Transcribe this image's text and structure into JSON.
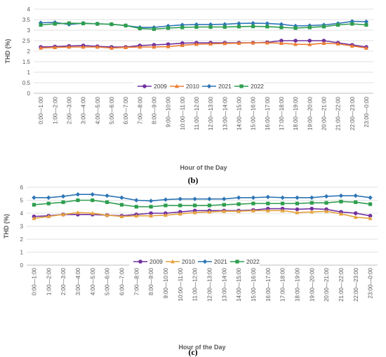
{
  "chart_data": [
    {
      "id": "b",
      "caption": "(b)",
      "type": "line",
      "xlabel": "Hour of the Day",
      "ylabel": "THD (%)",
      "ylim": [
        0,
        4
      ],
      "yticks": [
        0,
        0.5,
        1,
        1.5,
        2,
        2.5,
        3,
        3.5,
        4
      ],
      "ytick_labels": [
        "0",
        "0.5",
        "1",
        "1.5",
        "2",
        "2.5",
        "3",
        "3.5",
        "4"
      ],
      "grid": true,
      "legend_position": "center",
      "categories": [
        "0:00—1:00",
        "1:00—2:00",
        "2:00—3:00",
        "3:00—4:00",
        "4:00—5:00",
        "5:00—6:00",
        "6:00—7:00",
        "7:00—8:00",
        "8:00—9:00",
        "9:00—10:00",
        "10:00—11:00",
        "11:00—12:00",
        "12:00—13:00",
        "13:00—14:00",
        "14:00—15:00",
        "15:00—16:00",
        "16:00—17:00",
        "17:00—18:00",
        "18:00—19:00",
        "19:00—20:00",
        "20:00—21:00",
        "21:00—22:00",
        "22:00—23:00",
        "23:00—0:00"
      ],
      "series": [
        {
          "name": "2009",
          "color": "#7030a0",
          "marker": "circle",
          "values": [
            2.2,
            2.22,
            2.25,
            2.27,
            2.23,
            2.2,
            2.2,
            2.27,
            2.3,
            2.33,
            2.38,
            2.4,
            2.4,
            2.4,
            2.4,
            2.4,
            2.42,
            2.5,
            2.5,
            2.5,
            2.5,
            2.4,
            2.3,
            2.2
          ]
        },
        {
          "name": "2010",
          "color": "#ed7d31",
          "marker": "triangle",
          "values": [
            2.15,
            2.18,
            2.2,
            2.2,
            2.2,
            2.15,
            2.18,
            2.2,
            2.2,
            2.22,
            2.28,
            2.33,
            2.35,
            2.37,
            2.38,
            2.4,
            2.4,
            2.38,
            2.33,
            2.32,
            2.38,
            2.35,
            2.25,
            2.15
          ]
        },
        {
          "name": "2021",
          "color": "#2e75b6",
          "marker": "diamond",
          "values": [
            3.35,
            3.37,
            3.27,
            3.33,
            3.3,
            3.28,
            3.22,
            3.13,
            3.13,
            3.2,
            3.25,
            3.27,
            3.27,
            3.28,
            3.32,
            3.33,
            3.32,
            3.28,
            3.2,
            3.22,
            3.25,
            3.32,
            3.42,
            3.4
          ]
        },
        {
          "name": "2022",
          "color": "#2e9e4f",
          "marker": "square",
          "values": [
            3.25,
            3.3,
            3.33,
            3.32,
            3.3,
            3.28,
            3.22,
            3.08,
            3.05,
            3.1,
            3.13,
            3.15,
            3.15,
            3.15,
            3.17,
            3.18,
            3.17,
            3.13,
            3.1,
            3.13,
            3.17,
            3.25,
            3.3,
            3.25
          ]
        }
      ]
    },
    {
      "id": "c",
      "caption": "(c)",
      "type": "line",
      "xlabel": "Hour of the Day",
      "ylabel": "THD (%)",
      "ylim": [
        0,
        6
      ],
      "yticks": [
        0,
        1,
        2,
        3,
        4,
        5,
        6
      ],
      "ytick_labels": [
        "0",
        "1",
        "2",
        "3",
        "4",
        "5",
        "6"
      ],
      "grid": true,
      "legend_position": "center",
      "categories": [
        "0:00—1:00",
        "1:00—2:00",
        "2:00—3:00",
        "3:00—4:00",
        "4:00—5:00",
        "5:00—6:00",
        "6:00—7:00",
        "7:00—8:00",
        "8:00—9:00",
        "9:00—10:00",
        "10:00—11:00",
        "11:00—12:00",
        "12:00—13:00",
        "13:00—14:00",
        "14:00—15:00",
        "15:00—16:00",
        "16:00—17:00",
        "17:00—18:00",
        "18:00—19:00",
        "19:00—20:00",
        "20:00—21:00",
        "21:00—22:00",
        "22:00—23:00",
        "23:00—0:00"
      ],
      "series": [
        {
          "name": "2009",
          "color": "#7030a0",
          "marker": "circle",
          "values": [
            3.75,
            3.8,
            3.9,
            3.9,
            3.9,
            3.85,
            3.8,
            3.9,
            4.0,
            4.0,
            4.1,
            4.2,
            4.2,
            4.2,
            4.2,
            4.25,
            4.35,
            4.35,
            4.3,
            4.35,
            4.3,
            4.1,
            4.0,
            3.8
          ]
        },
        {
          "name": "2010",
          "color": "#e6a33e",
          "marker": "triangle",
          "values": [
            3.6,
            3.75,
            3.9,
            4.05,
            4.0,
            3.85,
            3.75,
            3.8,
            3.8,
            3.85,
            3.95,
            4.05,
            4.1,
            4.15,
            4.15,
            4.2,
            4.2,
            4.2,
            4.05,
            4.1,
            4.15,
            3.95,
            3.7,
            3.6
          ]
        },
        {
          "name": "2021",
          "color": "#2e75b6",
          "marker": "diamond",
          "values": [
            5.2,
            5.2,
            5.3,
            5.45,
            5.45,
            5.35,
            5.2,
            5.0,
            4.95,
            5.05,
            5.1,
            5.1,
            5.1,
            5.1,
            5.2,
            5.2,
            5.25,
            5.2,
            5.2,
            5.2,
            5.3,
            5.35,
            5.35,
            5.2
          ]
        },
        {
          "name": "2022",
          "color": "#2e9e4f",
          "marker": "square",
          "values": [
            4.65,
            4.75,
            4.85,
            5.0,
            5.0,
            4.85,
            4.65,
            4.5,
            4.5,
            4.6,
            4.6,
            4.6,
            4.6,
            4.65,
            4.7,
            4.75,
            4.75,
            4.75,
            4.75,
            4.8,
            4.8,
            4.9,
            4.85,
            4.7
          ]
        }
      ]
    }
  ]
}
